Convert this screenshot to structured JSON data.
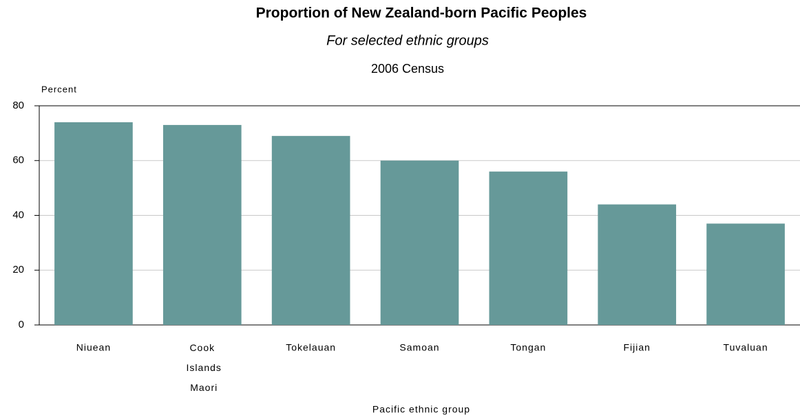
{
  "chart_data": {
    "type": "bar",
    "title": "Proportion of New Zealand-born Pacific Peoples",
    "subtitle": "For selected ethnic groups",
    "subtitle2": "2006 Census",
    "y_label": "Percent",
    "x_label": "Pacific ethnic group",
    "categories": [
      "Niuean",
      "Cook Islands Maori",
      "Tokelauan",
      "Samoan",
      "Tongan",
      "Fijian",
      "Tuvaluan"
    ],
    "values": [
      74,
      73,
      69,
      60,
      56,
      44,
      37
    ],
    "color": "#669999",
    "ylim": [
      0,
      80
    ],
    "yticks": [
      0,
      20,
      40,
      60,
      80
    ],
    "grid": true
  }
}
